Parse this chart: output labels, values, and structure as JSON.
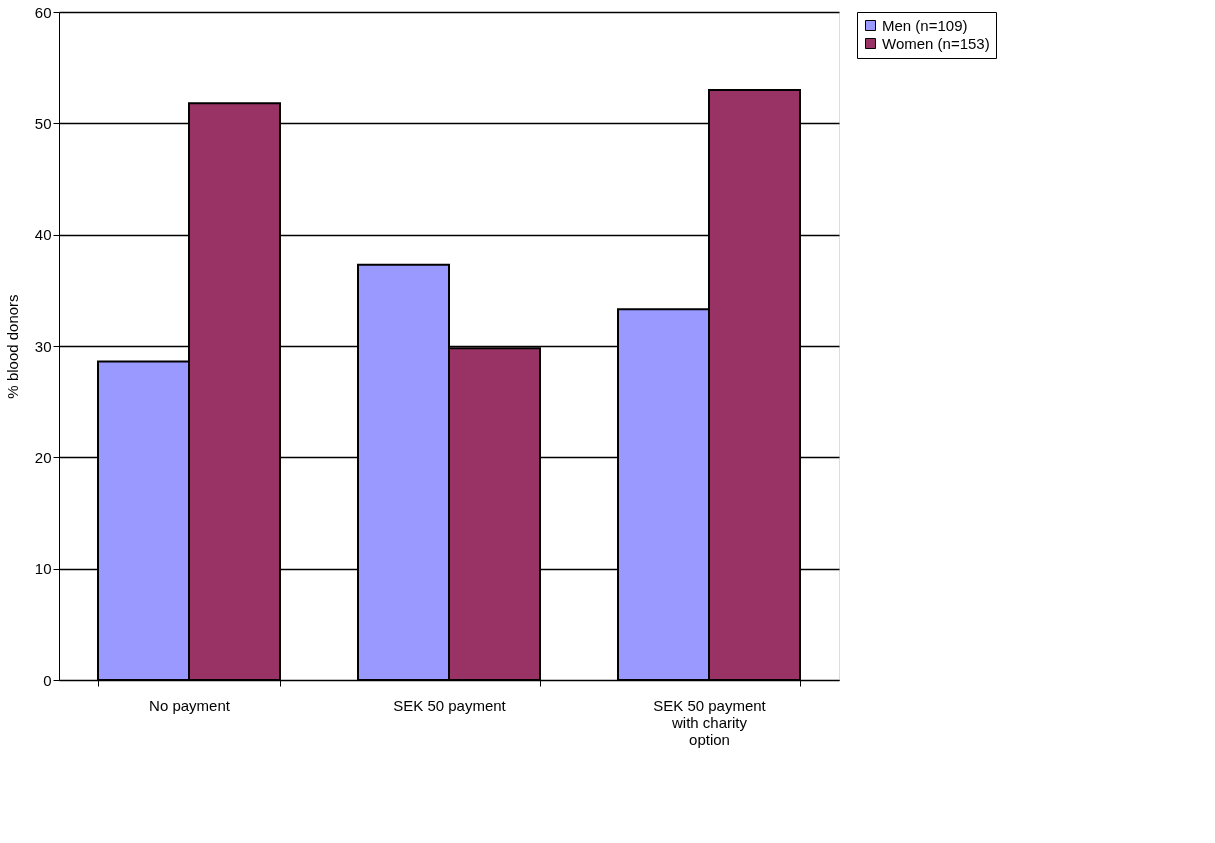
{
  "chart_data": {
    "type": "bar",
    "ylabel": "% blood donors",
    "categories": [
      "No payment",
      "SEK 50 payment",
      "SEK 50 payment with charity option"
    ],
    "series": [
      {
        "name": "Men (n=109)",
        "color": "#9999ff",
        "values": [
          28.6,
          37.3,
          33.3
        ]
      },
      {
        "name": "Women (n=153)",
        "color": "#993366",
        "values": [
          51.8,
          29.8,
          53.0
        ]
      }
    ],
    "ylim": [
      0,
      60
    ],
    "yticks": [
      0,
      10,
      20,
      30,
      40,
      50,
      60
    ],
    "grid": "y",
    "legend": "right"
  }
}
